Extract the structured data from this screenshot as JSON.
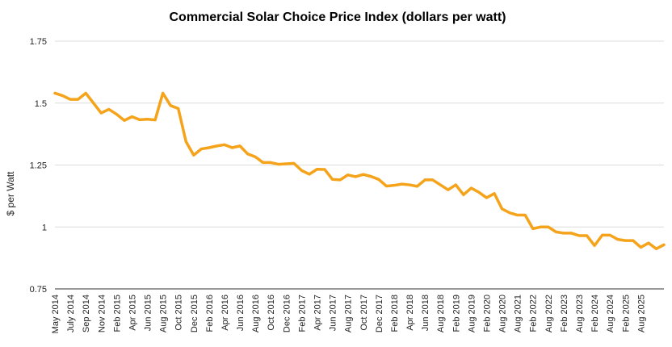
{
  "chart_data": {
    "type": "line",
    "title": "Commercial Solar Choice Price Index (dollars per watt)",
    "xlabel": "",
    "ylabel": "$ per Watt",
    "ylim": [
      0.75,
      1.75
    ],
    "yticks": [
      "1.75",
      "1.5",
      "1.25",
      "1",
      "0.75"
    ],
    "ytick_values": [
      1.75,
      1.5,
      1.25,
      1.0,
      0.75
    ],
    "grid": true,
    "legend": "none",
    "color": "#f5a31a",
    "x_labels": [
      "May 2014",
      "July 2014",
      "Sep 2014",
      "Nov 2014",
      "Feb 2015",
      "Apr 2015",
      "Jun 2015",
      "Aug 2015",
      "Oct 2015",
      "Dec 2015",
      "Feb 2016",
      "Apr 2016",
      "Jun 2016",
      "Aug 2016",
      "Oct 2016",
      "Dec 2016",
      "Feb 2017",
      "Apr 2017",
      "Jun 2017",
      "Aug 2017",
      "Oct 2017",
      "Dec 2017",
      "Feb 2018",
      "Apr 2018",
      "Jun 2018",
      "Aug 2018",
      "Feb 2019",
      "Aug 2019",
      "Feb 2020",
      "Aug 2020",
      "Aug 2021",
      "Feb 2022",
      "Aug 2022",
      "Feb 2023",
      "Aug 2023",
      "Feb 2024",
      "Aug 2024",
      "Feb 2025",
      "Aug 2025"
    ],
    "label_indices": [
      0,
      2,
      4,
      6,
      8,
      10,
      12,
      14,
      16,
      18,
      20,
      22,
      24,
      26,
      28,
      30,
      32,
      34,
      36,
      38,
      40,
      42,
      44,
      46,
      48,
      50,
      52,
      54,
      56,
      58,
      60,
      62,
      64,
      66,
      68,
      70,
      72,
      74,
      76
    ],
    "values": [
      1.54,
      1.53,
      1.515,
      1.515,
      1.54,
      1.5,
      1.46,
      1.475,
      1.455,
      1.43,
      1.445,
      1.433,
      1.435,
      1.432,
      1.54,
      1.49,
      1.478,
      1.345,
      1.29,
      1.315,
      1.32,
      1.327,
      1.332,
      1.32,
      1.327,
      1.295,
      1.283,
      1.26,
      1.26,
      1.253,
      1.255,
      1.257,
      1.228,
      1.213,
      1.233,
      1.232,
      1.192,
      1.19,
      1.21,
      1.203,
      1.212,
      1.204,
      1.192,
      1.165,
      1.168,
      1.173,
      1.17,
      1.164,
      1.19,
      1.19,
      1.17,
      1.15,
      1.17,
      1.13,
      1.157,
      1.14,
      1.118,
      1.135,
      1.073,
      1.057,
      1.048,
      1.048,
      0.993,
      1.0,
      1.0,
      0.98,
      0.975,
      0.975,
      0.965,
      0.965,
      0.925,
      0.967,
      0.967,
      0.95,
      0.945,
      0.945,
      0.918,
      0.935,
      0.912,
      0.928
    ]
  }
}
